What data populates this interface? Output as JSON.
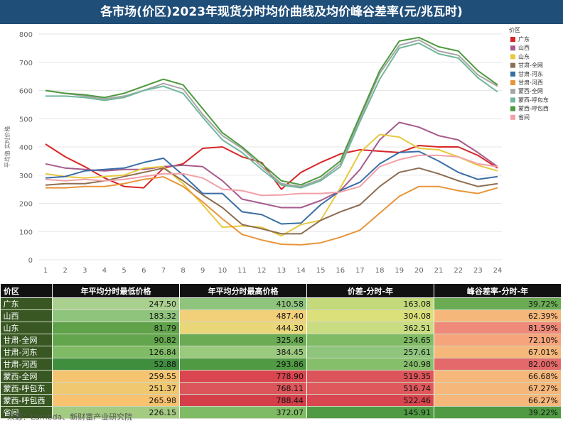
{
  "page_title": "各市场(价区)2023年现货分时均价曲线及均价峰谷差率(元/兆瓦时)",
  "chart_data": {
    "type": "line",
    "ylabel": "平均值 实时价格",
    "legend_title": "价区",
    "legend_position": "right",
    "ylim": [
      0,
      800
    ],
    "yticks": [
      0,
      100,
      200,
      300,
      400,
      500,
      600,
      700,
      800
    ],
    "x": [
      1,
      2,
      3,
      4,
      5,
      6,
      7,
      8,
      9,
      10,
      11,
      12,
      13,
      14,
      15,
      16,
      17,
      18,
      19,
      20,
      21,
      22,
      23,
      24
    ],
    "series": [
      {
        "name": "广东",
        "color": "#d62728",
        "values": [
          410,
          365,
          330,
          290,
          260,
          255,
          325,
          340,
          395,
          400,
          365,
          345,
          250,
          310,
          345,
          375,
          390,
          385,
          380,
          405,
          400,
          400,
          370,
          325
        ]
      },
      {
        "name": "山西",
        "color": "#a65b8c",
        "values": [
          340,
          325,
          320,
          315,
          320,
          320,
          330,
          335,
          330,
          280,
          215,
          200,
          185,
          185,
          210,
          245,
          320,
          425,
          487,
          470,
          440,
          425,
          380,
          330
        ]
      },
      {
        "name": "山东",
        "color": "#e8c93f",
        "values": [
          305,
          295,
          290,
          295,
          300,
          325,
          330,
          270,
          195,
          115,
          120,
          115,
          85,
          125,
          140,
          255,
          380,
          444,
          435,
          395,
          390,
          365,
          335,
          315
        ]
      },
      {
        "name": "甘肃-全网",
        "color": "#8c6d52",
        "values": [
          265,
          270,
          270,
          280,
          295,
          310,
          325,
          280,
          230,
          185,
          125,
          110,
          92,
          92,
          140,
          170,
          195,
          260,
          310,
          325,
          305,
          280,
          260,
          270
        ]
      },
      {
        "name": "甘肃-河东",
        "color": "#3a6ea5",
        "values": [
          290,
          295,
          315,
          320,
          325,
          345,
          360,
          300,
          235,
          235,
          170,
          160,
          127,
          130,
          195,
          245,
          275,
          340,
          380,
          384,
          350,
          310,
          285,
          295
        ]
      },
      {
        "name": "甘肃-河西",
        "color": "#e8953a",
        "values": [
          255,
          255,
          260,
          260,
          270,
          285,
          294,
          260,
          205,
          145,
          90,
          70,
          55,
          53,
          60,
          80,
          105,
          165,
          225,
          260,
          260,
          245,
          235,
          255
        ]
      },
      {
        "name": "蒙西-全网",
        "color": "#a6a6a6",
        "values": [
          600,
          590,
          580,
          570,
          580,
          600,
          625,
          605,
          515,
          440,
          395,
          330,
          270,
          260,
          285,
          340,
          500,
          660,
          760,
          779,
          740,
          725,
          655,
          615
        ]
      },
      {
        "name": "蒙西-呼包东",
        "color": "#6fb89a",
        "values": [
          580,
          580,
          575,
          565,
          575,
          600,
          615,
          590,
          505,
          425,
          380,
          320,
          265,
          255,
          280,
          330,
          490,
          640,
          750,
          768,
          730,
          715,
          645,
          595
        ]
      },
      {
        "name": "蒙西-呼包西",
        "color": "#4e9a3e",
        "values": [
          600,
          590,
          585,
          575,
          590,
          615,
          640,
          620,
          535,
          450,
          400,
          340,
          280,
          266,
          295,
          350,
          510,
          670,
          775,
          788,
          755,
          740,
          670,
          620
        ]
      },
      {
        "name": "省间",
        "color": "#f2a0a8",
        "values": [
          285,
          280,
          285,
          280,
          285,
          295,
          305,
          305,
          290,
          250,
          245,
          228,
          230,
          235,
          235,
          240,
          260,
          330,
          355,
          370,
          370,
          365,
          340,
          330
        ]
      }
    ]
  },
  "table": {
    "headers": [
      "价区",
      "年平均分时最低价格",
      "年平均分时最高价格",
      "价差-分时-年",
      "峰谷差率-分时-年"
    ],
    "rows": [
      {
        "name": "广东",
        "min": "247.50",
        "max": "410.58",
        "diff": "163.08",
        "rate": "39.72%"
      },
      {
        "name": "山西",
        "min": "183.32",
        "max": "487.40",
        "diff": "304.08",
        "rate": "62.39%"
      },
      {
        "name": "山东",
        "min": "81.79",
        "max": "444.30",
        "diff": "362.51",
        "rate": "81.59%"
      },
      {
        "name": "甘肃-全网",
        "min": "90.82",
        "max": "325.48",
        "diff": "234.65",
        "rate": "72.10%"
      },
      {
        "name": "甘肃-河东",
        "min": "126.84",
        "max": "384.45",
        "diff": "257.61",
        "rate": "67.01%"
      },
      {
        "name": "甘肃-河西",
        "min": "52.88",
        "max": "293.86",
        "diff": "240.98",
        "rate": "82.00%"
      },
      {
        "name": "蒙西-全网",
        "min": "259.55",
        "max": "778.90",
        "diff": "519.35",
        "rate": "66.68%"
      },
      {
        "name": "蒙西-呼包东",
        "min": "251.37",
        "max": "768.11",
        "diff": "516.74",
        "rate": "67.27%"
      },
      {
        "name": "蒙西-呼包西",
        "min": "265.98",
        "max": "788.44",
        "diff": "522.46",
        "rate": "66.27%"
      },
      {
        "name": "省间",
        "min": "226.15",
        "max": "372.07",
        "diff": "145.91",
        "rate": "39.22%"
      }
    ]
  },
  "source": "来源：Lambda、新财富产业研究院"
}
